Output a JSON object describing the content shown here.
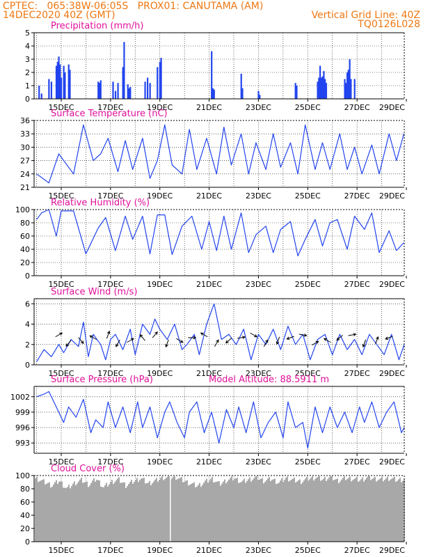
{
  "header": {
    "line1": "CPTEC:   065:38W-06:05S   PROX01: CANUTAMA (AM)",
    "line2_left": "14DEC2020 40Z (GMT)",
    "line2_right": "Vertical Grid Line: 40Z",
    "line3_right": "TQ0126L028"
  },
  "colors": {
    "header": "#ee7711",
    "title": "#e0109a",
    "series": "#2244ee",
    "cloud": "#a8a8a8",
    "arrow": "#000000",
    "grid": "#000000"
  },
  "x_tick_labels": [
    "15DEC",
    "17DEC",
    "19DEC",
    "21DEC",
    "23DEC",
    "25DEC",
    "27DEC",
    "29DEC"
  ],
  "chart_data": [
    {
      "type": "bar",
      "title": "Precipitation (mm/h)",
      "ylim": [
        0,
        5
      ],
      "yticks": [
        "0",
        "1",
        "2",
        "3",
        "4",
        "5"
      ],
      "xlim_days": [
        14.0,
        29.0
      ],
      "x": [
        14.1,
        14.2,
        14.5,
        14.6,
        14.8,
        14.85,
        14.9,
        14.95,
        15.0,
        15.1,
        15.15,
        15.3,
        15.35,
        16.5,
        16.55,
        16.6,
        17.1,
        17.2,
        17.3,
        17.5,
        17.55,
        17.7,
        17.75,
        17.8,
        18.4,
        18.5,
        18.6,
        18.9,
        19.0,
        19.05,
        21.1,
        21.15,
        21.2,
        22.3,
        22.35,
        23.0,
        23.05,
        24.5,
        24.55,
        25.4,
        25.45,
        25.5,
        25.55,
        25.6,
        25.65,
        25.7,
        25.75,
        26.5,
        26.55,
        26.6,
        26.65,
        26.7,
        26.75,
        26.9
      ],
      "values": [
        1.0,
        0.4,
        1.5,
        1.3,
        2.5,
        2.8,
        3.2,
        2.6,
        1.6,
        2.5,
        2.0,
        2.6,
        2.2,
        1.3,
        1.2,
        1.4,
        1.3,
        0.6,
        1.2,
        2.4,
        4.3,
        1.1,
        0.8,
        0.9,
        1.3,
        1.6,
        1.2,
        2.4,
        2.8,
        3.1,
        3.6,
        0.8,
        0.7,
        1.9,
        0.8,
        0.6,
        0.3,
        1.2,
        1.0,
        1.3,
        1.6,
        2.5,
        1.6,
        1.7,
        2.1,
        1.5,
        1.2,
        1.5,
        1.2,
        2.0,
        2.2,
        3.0,
        1.5,
        1.5
      ]
    },
    {
      "type": "line",
      "title": "Surface Temperature (nC)",
      "ylim": [
        21,
        36
      ],
      "yticks": [
        "21",
        "24",
        "27",
        "30",
        "33",
        "36"
      ],
      "xlim_days": [
        14.0,
        29.0
      ],
      "x": [
        14.0,
        14.5,
        14.9,
        15.5,
        15.9,
        16.3,
        16.6,
        16.9,
        17.3,
        17.6,
        17.9,
        18.3,
        18.6,
        18.9,
        19.2,
        19.5,
        19.9,
        20.2,
        20.5,
        20.9,
        21.3,
        21.6,
        21.9,
        22.3,
        22.6,
        22.9,
        23.3,
        23.6,
        23.9,
        24.3,
        24.6,
        24.9,
        25.3,
        25.6,
        25.9,
        26.3,
        26.6,
        26.9,
        27.2,
        27.6,
        27.9,
        28.3,
        28.6,
        28.9
      ],
      "values": [
        24.0,
        22.0,
        28.5,
        24.0,
        35.0,
        27.0,
        28.5,
        32.0,
        24.5,
        31.5,
        25.0,
        32.0,
        23.0,
        27.0,
        35.0,
        26.0,
        24.0,
        34.0,
        25.0,
        32.0,
        24.0,
        34.5,
        26.0,
        33.0,
        24.0,
        31.0,
        25.0,
        33.0,
        25.5,
        31.0,
        24.0,
        35.0,
        25.0,
        31.0,
        25.0,
        33.0,
        25.0,
        30.0,
        24.0,
        30.5,
        24.0,
        33.0,
        27.0,
        33.0
      ]
    },
    {
      "type": "line",
      "title": "Relative Humidity (%)",
      "ylim": [
        0,
        100
      ],
      "yticks": [
        "0",
        "20",
        "40",
        "60",
        "80",
        "100"
      ],
      "xlim_days": [
        14.0,
        29.0
      ],
      "x": [
        14.0,
        14.2,
        14.5,
        14.8,
        15.0,
        15.5,
        16.0,
        16.5,
        16.8,
        17.2,
        17.6,
        17.9,
        18.3,
        18.6,
        18.9,
        19.2,
        19.5,
        19.9,
        20.3,
        20.7,
        21.0,
        21.3,
        21.6,
        21.9,
        22.3,
        22.6,
        22.9,
        23.3,
        23.6,
        23.9,
        24.3,
        24.6,
        24.9,
        25.3,
        25.6,
        25.9,
        26.2,
        26.6,
        26.9,
        27.3,
        27.6,
        27.9,
        28.3,
        28.6,
        28.9
      ],
      "values": [
        85.0,
        95.0,
        100.0,
        60.0,
        98.0,
        98.0,
        33.0,
        72.0,
        88.0,
        38.0,
        90.0,
        55.0,
        90.0,
        33.0,
        92.0,
        92.0,
        32.0,
        75.0,
        90.0,
        40.0,
        82.0,
        38.0,
        90.0,
        40.0,
        95.0,
        35.0,
        62.0,
        75.0,
        35.0,
        70.0,
        82.0,
        30.0,
        55.0,
        85.0,
        45.0,
        80.0,
        85.0,
        40.0,
        90.0,
        70.0,
        95.0,
        35.0,
        68.0,
        38.0,
        50.0
      ]
    },
    {
      "type": "line",
      "title": "Surface Wind (m/s)",
      "ylim": [
        0,
        6.5
      ],
      "yticks": [
        "0",
        "2",
        "4",
        "6"
      ],
      "xlim_days": [
        14.0,
        29.0
      ],
      "x": [
        14.0,
        14.3,
        14.6,
        14.9,
        15.1,
        15.4,
        15.7,
        15.9,
        16.1,
        16.3,
        16.6,
        16.8,
        17.0,
        17.2,
        17.5,
        17.8,
        18.0,
        18.3,
        18.6,
        18.8,
        19.0,
        19.3,
        19.6,
        19.9,
        20.1,
        20.4,
        20.6,
        20.9,
        21.2,
        21.5,
        21.8,
        22.1,
        22.4,
        22.7,
        23.0,
        23.3,
        23.6,
        23.9,
        24.2,
        24.5,
        24.8,
        25.1,
        25.4,
        25.7,
        26.0,
        26.3,
        26.6,
        26.9,
        27.2,
        27.5,
        27.8,
        28.1,
        28.4,
        28.7,
        29.0
      ],
      "values": [
        0.3,
        1.5,
        0.8,
        2.0,
        1.2,
        2.5,
        1.8,
        4.2,
        0.8,
        3.0,
        2.0,
        0.5,
        2.5,
        3.0,
        1.5,
        3.5,
        1.0,
        4.0,
        3.0,
        4.5,
        3.5,
        2.5,
        4.0,
        1.5,
        2.0,
        3.0,
        1.0,
        4.0,
        6.0,
        2.5,
        3.0,
        2.0,
        3.5,
        0.5,
        3.0,
        2.0,
        3.5,
        1.5,
        3.8,
        2.0,
        3.0,
        0.5,
        2.5,
        3.0,
        1.0,
        3.0,
        1.5,
        2.5,
        1.0,
        3.0,
        2.0,
        1.0,
        3.0,
        0.5,
        2.0
      ]
    },
    {
      "type": "line",
      "title": "Surface Pressure (hPa)",
      "annotation": "Model Altitude: 88.5911 m",
      "ylim": [
        991,
        1004
      ],
      "yticks": [
        "993",
        "996",
        "999",
        "1002"
      ],
      "xlim_days": [
        14.0,
        29.0
      ],
      "x": [
        14.0,
        14.3,
        14.5,
        14.8,
        15.1,
        15.3,
        15.6,
        15.9,
        16.2,
        16.4,
        16.7,
        16.9,
        17.2,
        17.5,
        17.8,
        18.1,
        18.3,
        18.6,
        18.9,
        19.2,
        19.4,
        19.7,
        20.0,
        20.2,
        20.5,
        20.8,
        21.1,
        21.4,
        21.7,
        22.0,
        22.2,
        22.5,
        22.8,
        23.1,
        23.4,
        23.7,
        24.0,
        24.2,
        24.5,
        24.8,
        25.0,
        25.3,
        25.6,
        25.9,
        26.2,
        26.5,
        26.8,
        27.1,
        27.3,
        27.6,
        27.9,
        28.2,
        28.5,
        28.8,
        29.0
      ],
      "values": [
        1002.0,
        1002.5,
        1003.0,
        1000.0,
        997.0,
        1000.0,
        998.0,
        1001.5,
        995.0,
        997.5,
        996.0,
        1001.0,
        996.0,
        1000.0,
        995.0,
        1001.0,
        996.0,
        1000.0,
        994.0,
        999.0,
        1001.0,
        997.0,
        994.0,
        999.0,
        1001.0,
        995.0,
        999.0,
        993.0,
        999.5,
        996.0,
        1000.0,
        995.0,
        1001.0,
        994.0,
        997.0,
        999.0,
        994.0,
        1001.0,
        996.0,
        997.0,
        992.0,
        1000.0,
        995.0,
        1000.0,
        996.0,
        999.0,
        995.0,
        1000.0,
        997.0,
        1001.0,
        996.0,
        999.0,
        1001.0,
        995.0,
        996.0
      ]
    },
    {
      "type": "area",
      "title": "Cloud Cover (%)",
      "ylim": [
        0,
        100
      ],
      "yticks": [
        "0",
        "20",
        "40",
        "60",
        "80",
        "100"
      ],
      "xlim_days": [
        14.0,
        29.0
      ],
      "x": [
        14.0,
        14.3,
        14.6,
        14.9,
        15.2,
        15.5,
        15.8,
        16.1,
        16.4,
        16.7,
        17.0,
        17.3,
        17.6,
        17.9,
        18.2,
        18.5,
        18.8,
        19.1,
        19.4,
        19.6,
        19.9,
        20.2,
        20.5,
        20.8,
        21.1,
        21.4,
        21.7,
        22.0,
        22.3,
        22.6,
        22.9,
        23.2,
        23.5,
        23.8,
        24.1,
        24.4,
        24.7,
        25.0,
        25.3,
        25.6,
        25.9,
        26.2,
        26.5,
        26.8,
        27.1,
        27.4,
        27.7,
        28.0,
        28.3,
        28.6,
        29.0
      ],
      "values": [
        95,
        90,
        85,
        92,
        80,
        88,
        93,
        86,
        95,
        82,
        90,
        94,
        85,
        91,
        96,
        88,
        92,
        97,
        96,
        98,
        93,
        88,
        84,
        90,
        95,
        87,
        93,
        96,
        90,
        94,
        97,
        92,
        95,
        89,
        96,
        93,
        91,
        95,
        97,
        94,
        98,
        92,
        96,
        95,
        93,
        97,
        95,
        94,
        96,
        93,
        95
      ]
    },
    {
      "type": "vectors",
      "title": "Surface Wind (m/s) direction",
      "x": [
        14.9,
        15.3,
        15.8,
        16.3,
        16.9,
        17.3,
        17.8,
        18.3,
        18.8,
        19.3,
        19.8,
        20.3,
        20.8,
        21.3,
        21.8,
        22.3,
        22.8,
        23.3,
        23.8,
        24.3,
        24.8,
        25.3,
        25.8,
        26.3,
        26.8,
        27.3,
        27.8,
        28.3
      ],
      "dir_deg": [
        60,
        220,
        140,
        300,
        20,
        210,
        60,
        320,
        40,
        200,
        120,
        90,
        300,
        30,
        230,
        80,
        120,
        30,
        200,
        250,
        100,
        60,
        300,
        230,
        80,
        200,
        20,
        250
      ]
    }
  ]
}
